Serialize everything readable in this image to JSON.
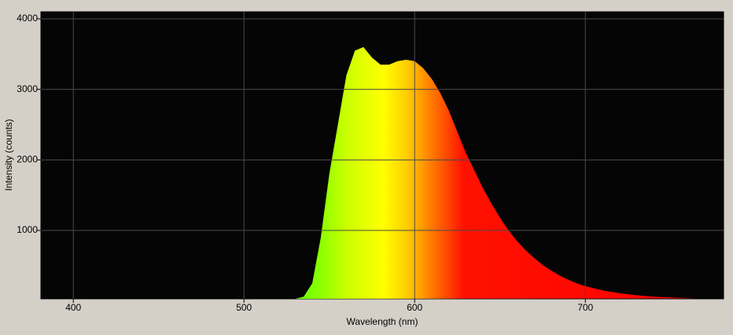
{
  "chart_data": {
    "type": "area",
    "x_label": "Wavelength (nm)",
    "y_label": "Intensity (counts)",
    "xlim": [
      381,
      781
    ],
    "ylim": [
      30,
      4100
    ],
    "xticks": [
      400,
      500,
      600,
      700
    ],
    "yticks": [
      1000,
      2000,
      3000,
      4000
    ],
    "grid": true,
    "x": [
      530,
      535,
      540,
      545,
      550,
      555,
      560,
      565,
      570,
      575,
      580,
      585,
      590,
      595,
      600,
      605,
      610,
      615,
      620,
      625,
      630,
      635,
      640,
      645,
      650,
      655,
      660,
      665,
      670,
      675,
      680,
      685,
      690,
      695,
      700,
      705,
      710,
      715,
      720,
      725,
      730,
      735,
      740,
      745,
      750,
      755,
      760,
      765
    ],
    "values": [
      30,
      60,
      250,
      900,
      1800,
      2500,
      3200,
      3550,
      3600,
      3450,
      3350,
      3350,
      3400,
      3420,
      3400,
      3300,
      3150,
      2950,
      2700,
      2400,
      2100,
      1850,
      1600,
      1380,
      1180,
      1000,
      850,
      720,
      610,
      510,
      430,
      360,
      300,
      250,
      210,
      180,
      150,
      130,
      110,
      95,
      80,
      70,
      60,
      55,
      50,
      45,
      40,
      35
    ]
  }
}
